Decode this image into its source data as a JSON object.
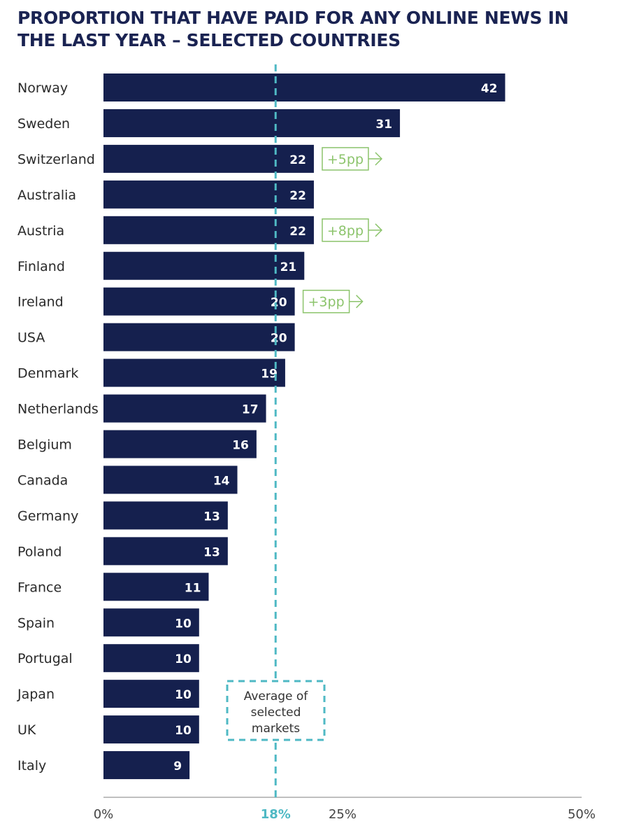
{
  "chart_data": {
    "type": "bar",
    "orientation": "horizontal",
    "title": "PROPORTION THAT HAVE PAID FOR ANY ONLINE NEWS IN THE LAST YEAR – SELECTED COUNTRIES",
    "categories": [
      "Norway",
      "Sweden",
      "Switzerland",
      "Australia",
      "Austria",
      "Finland",
      "Ireland",
      "USA",
      "Denmark",
      "Netherlands",
      "Belgium",
      "Canada",
      "Germany",
      "Poland",
      "France",
      "Spain",
      "Portugal",
      "Japan",
      "UK",
      "Italy"
    ],
    "values": [
      42,
      31,
      22,
      22,
      22,
      21,
      20,
      20,
      19,
      17,
      16,
      14,
      13,
      13,
      11,
      10,
      10,
      10,
      10,
      9
    ],
    "xlim": [
      0,
      50
    ],
    "xticks": [
      {
        "value": 0,
        "label": "0%"
      },
      {
        "value": 25,
        "label": "25%"
      },
      {
        "value": 50,
        "label": "50%"
      }
    ],
    "average": {
      "value": 18,
      "label": "18%",
      "note": "Average of selected markets",
      "note_lines": [
        "Average of",
        "selected",
        "markets"
      ]
    },
    "annotations": [
      {
        "category": "Switzerland",
        "text": "+5pp"
      },
      {
        "category": "Austria",
        "text": "+8pp"
      },
      {
        "category": "Ireland",
        "text": "+3pp"
      }
    ],
    "colors": {
      "bar": "#15204e",
      "average": "#4fb9c4",
      "annotation": "#8cc46c",
      "title": "#1a2352"
    }
  }
}
